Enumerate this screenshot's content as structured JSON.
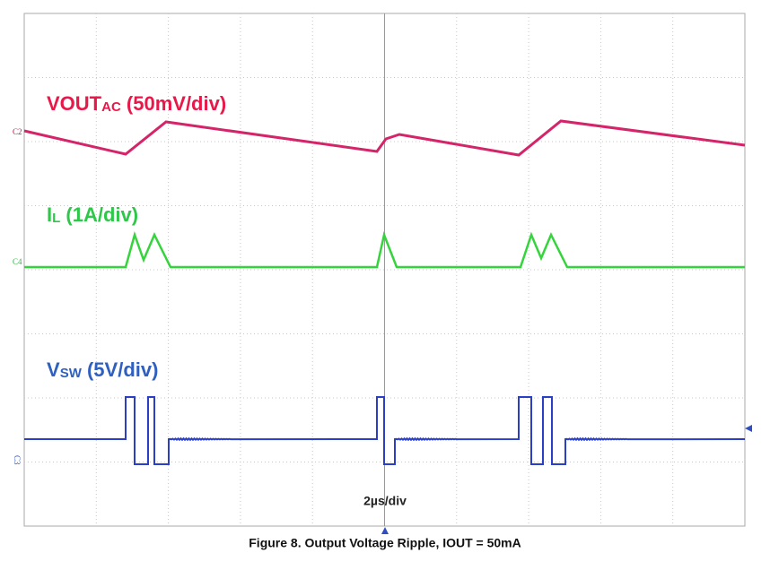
{
  "traces": [
    {
      "main": "VOUT",
      "sub": "AC",
      "scale": " (50mV/div)",
      "channel": "C2"
    },
    {
      "main": "I",
      "sub": "L",
      "scale": " (1A/div)",
      "channel": "C4"
    },
    {
      "main": "V",
      "sub": "SW",
      "scale": " (5V/div)",
      "channel": "C3"
    }
  ],
  "timebase": "2µs/div",
  "caption": "Figure 8. Output Voltage Ripple, IOUT = 50mA"
}
